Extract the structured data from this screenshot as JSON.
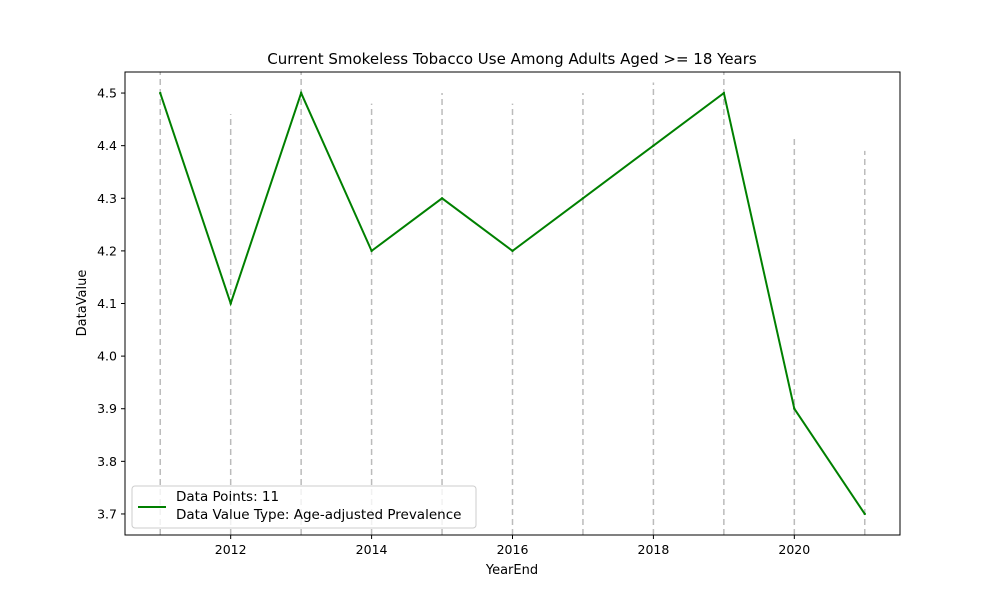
{
  "chart_data": {
    "type": "line",
    "title": "Current Smokeless Tobacco Use Among Adults Aged >= 18 Years",
    "xlabel": "YearEnd",
    "ylabel": "DataValue",
    "x": [
      2011,
      2012,
      2013,
      2014,
      2015,
      2016,
      2017,
      2018,
      2019,
      2020,
      2021
    ],
    "series": [
      {
        "values": [
          4.5,
          4.1,
          4.5,
          4.2,
          4.3,
          4.2,
          4.3,
          4.4,
          4.5,
          3.9,
          3.7
        ],
        "color": "#008000"
      }
    ],
    "reference_lines": {
      "style": "dashed",
      "color": "#bbbbbb",
      "x": [
        2011,
        2012,
        2013,
        2014,
        2015,
        2016,
        2017,
        2018,
        2019,
        2020,
        2021
      ],
      "y_top": [
        4.54,
        4.46,
        4.54,
        4.48,
        4.5,
        4.48,
        4.5,
        4.52,
        4.54,
        4.42,
        4.39
      ]
    },
    "xticks": [
      "2012",
      "2014",
      "2016",
      "2018",
      "2020"
    ],
    "yticks": [
      "3.7",
      "3.8",
      "3.9",
      "4.0",
      "4.1",
      "4.2",
      "4.3",
      "4.4",
      "4.5"
    ],
    "xlim": [
      2010.5,
      2021.5
    ],
    "ylim": [
      3.66,
      4.54
    ],
    "grid": false,
    "legend": {
      "placement": "lower-left",
      "lines": [
        "Data Points: 11",
        "Data Value Type: Age-adjusted Prevalence"
      ]
    }
  }
}
